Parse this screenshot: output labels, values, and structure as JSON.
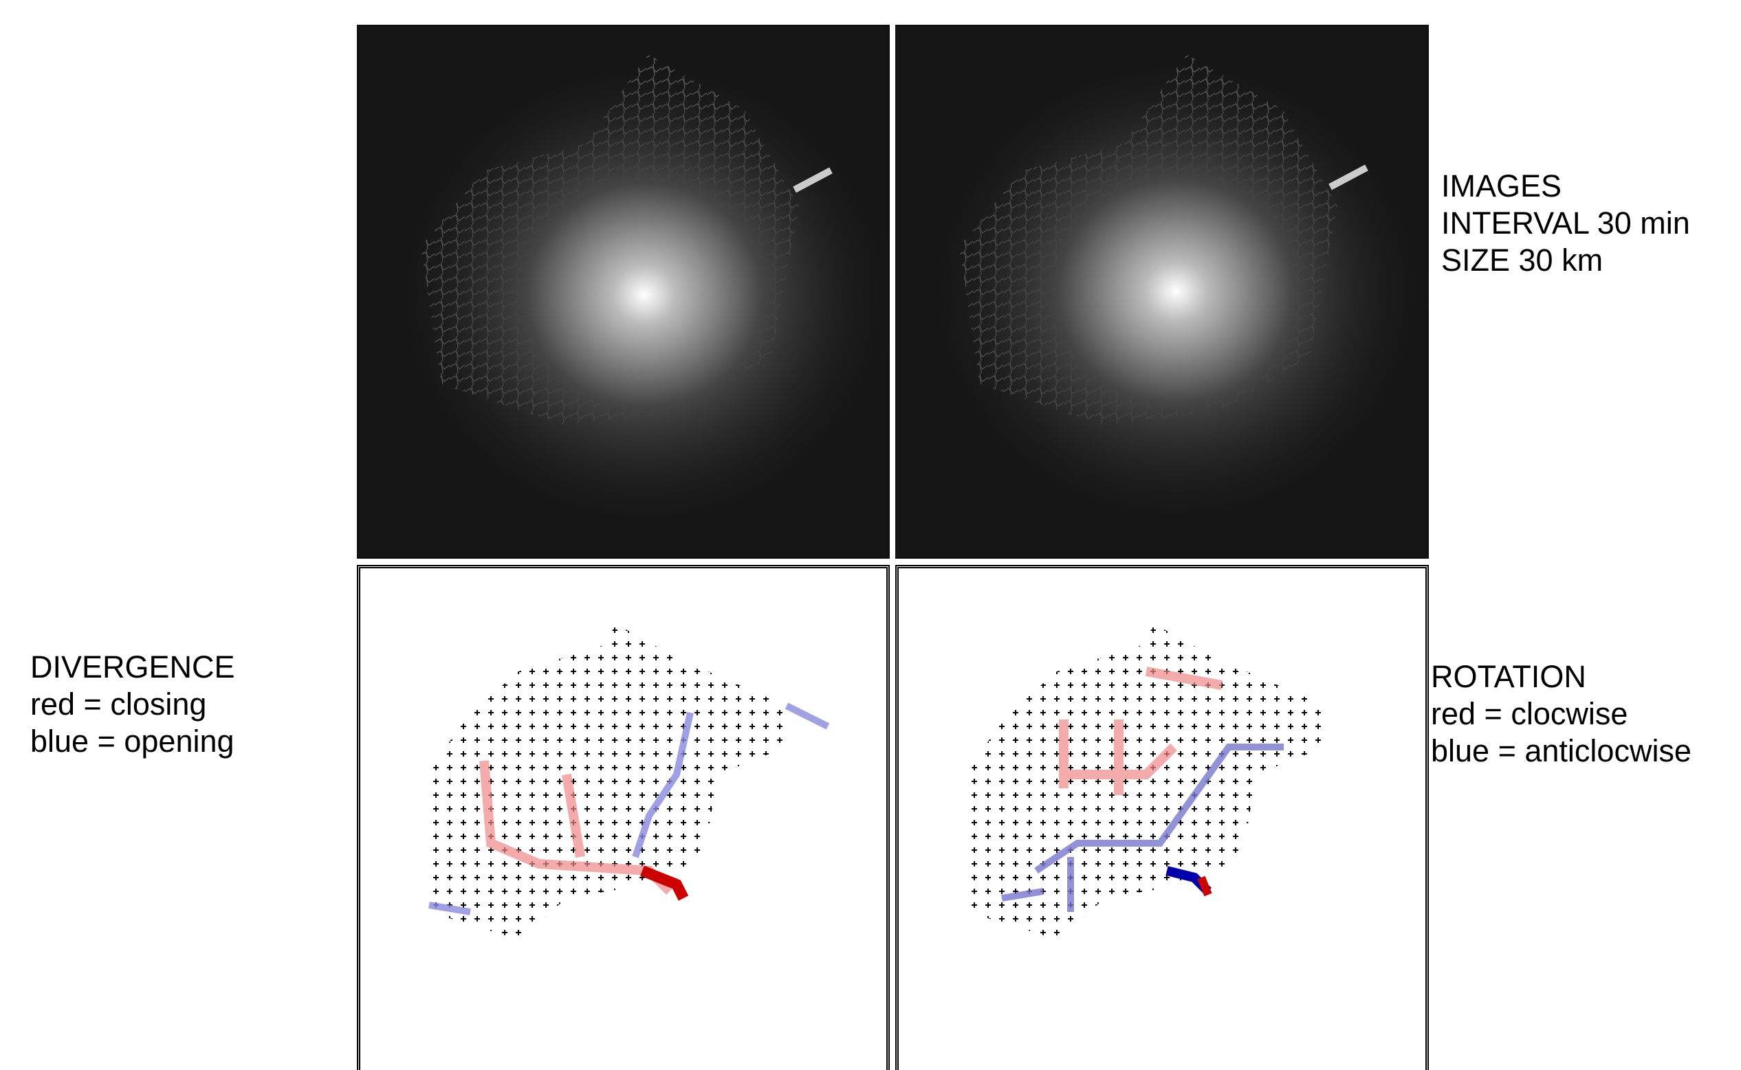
{
  "images_label": {
    "lines": [
      "IMAGES",
      "INTERVAL 30 min",
      "SIZE 30 km"
    ]
  },
  "divergence_label": {
    "lines": [
      "DIVERGENCE",
      "red = closing",
      "blue = opening"
    ]
  },
  "rotation_label": {
    "lines": [
      "ROTATION",
      "red = clocwise",
      "blue = anticlocwise"
    ]
  }
}
